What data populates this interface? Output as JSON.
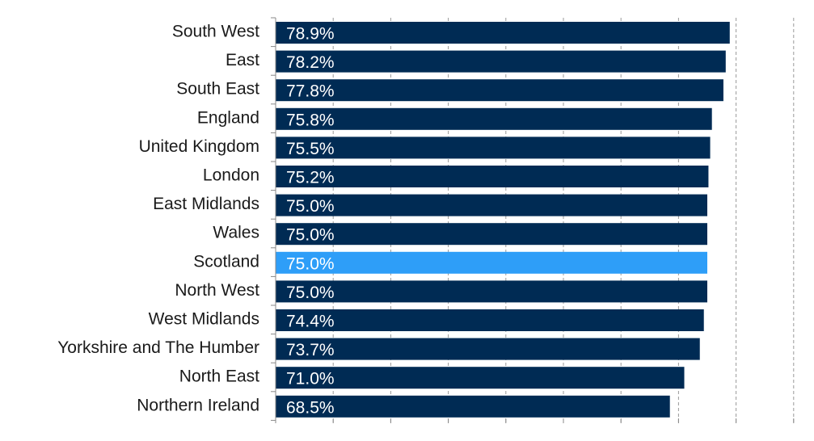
{
  "chart_data": {
    "type": "bar",
    "orientation": "horizontal",
    "categories": [
      "South West",
      "East",
      "South East",
      "England",
      "United Kingdom",
      "London",
      "East Midlands",
      "Wales",
      "Scotland",
      "North West",
      "West Midlands",
      "Yorkshire and The Humber",
      "North East",
      "Northern Ireland"
    ],
    "values": [
      78.9,
      78.2,
      77.8,
      75.8,
      75.5,
      75.2,
      75.0,
      75.0,
      75.0,
      75.0,
      74.4,
      73.7,
      71.0,
      68.5
    ],
    "value_labels": [
      "78.9%",
      "78.2%",
      "77.8%",
      "75.8%",
      "75.5%",
      "75.2%",
      "75.0%",
      "75.0%",
      "75.0%",
      "75.0%",
      "74.4%",
      "73.7%",
      "71.0%",
      "68.5%"
    ],
    "highlight": "Scotland",
    "title": "",
    "xlabel": "",
    "ylabel": "",
    "xlim": [
      0,
      90
    ],
    "gridlines": "vertical dashed",
    "bar_color": "#002b54",
    "highlight_color": "#2e9ef8",
    "grid_color": "#999999"
  }
}
